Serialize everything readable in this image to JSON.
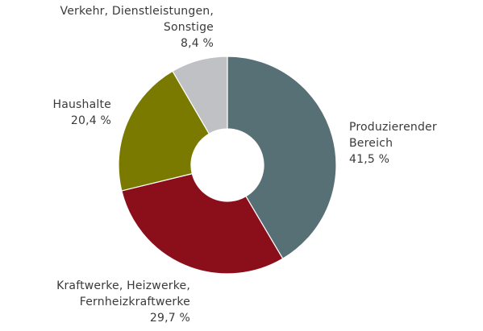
{
  "chart_data": {
    "type": "pie",
    "variant": "donut",
    "categories": [
      "Produzierender Bereich",
      "Kraftwerke, Heizwerke, Fernheizkraftwerke",
      "Haushalte",
      "Verkehr, Dienstleistungen, Sonstige"
    ],
    "values": [
      41.5,
      29.7,
      20.4,
      8.4
    ],
    "colors": [
      "#567075",
      "#8b0e1b",
      "#7a7a00",
      "#bfc1c4"
    ],
    "legend": "none",
    "labels": [
      {
        "lines": [
          "Produzierender",
          "Bereich"
        ],
        "value": "41,5 %"
      },
      {
        "lines": [
          "Kraftwerke, Heizwerke,",
          "Fernheizkraftwerke"
        ],
        "value": "29,7 %"
      },
      {
        "lines": [
          "Haushalte"
        ],
        "value": "20,4 %"
      },
      {
        "lines": [
          "Verkehr, Dienstleistungen,",
          "Sonstige"
        ],
        "value": "8,4 %"
      }
    ]
  }
}
